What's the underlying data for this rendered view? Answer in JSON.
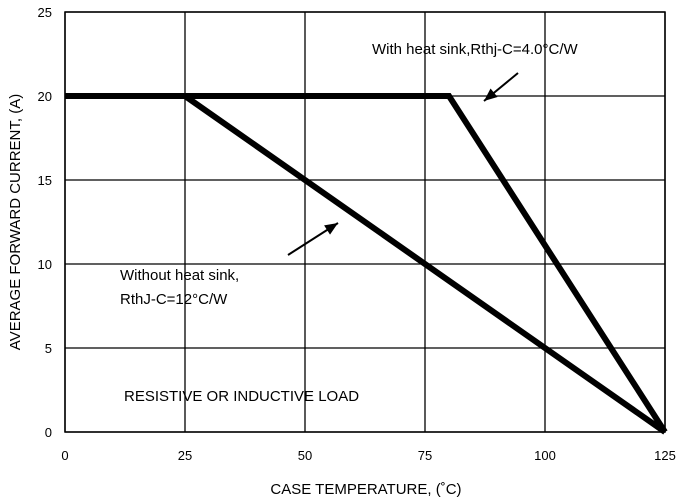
{
  "chart_data": {
    "type": "line",
    "xlabel": "CASE TEMPERATURE, (˚C)",
    "ylabel": "AVERAGE FORWARD CURRENT, (A)",
    "xlim": [
      0,
      125
    ],
    "ylim": [
      0,
      25
    ],
    "x_ticks": [
      "0",
      "25",
      "50",
      "75",
      "100",
      "125"
    ],
    "y_ticks": [
      "0",
      "5",
      "10",
      "15",
      "20",
      "25"
    ],
    "grid": true,
    "series": [
      {
        "name": "With heat sink,Rthj-C=4.0°C/W",
        "points": [
          [
            0,
            20
          ],
          [
            80,
            20
          ],
          [
            125,
            0
          ]
        ]
      },
      {
        "name": "Without heat sink, RthJ-C=12°C/W",
        "points": [
          [
            0,
            20
          ],
          [
            25,
            20
          ],
          [
            125,
            0
          ]
        ]
      }
    ],
    "annotations": {
      "with_heat_sink": "With heat sink,Rthj-C=4.0°C/W",
      "without_heat_sink_line1": "Without heat sink,",
      "without_heat_sink_line2": "RthJ-C=12°C/W",
      "load_note": "RESISTIVE OR INDUCTIVE LOAD"
    },
    "colors": {
      "line": "#000000",
      "grid": "#000000",
      "background": "#ffffff"
    }
  }
}
